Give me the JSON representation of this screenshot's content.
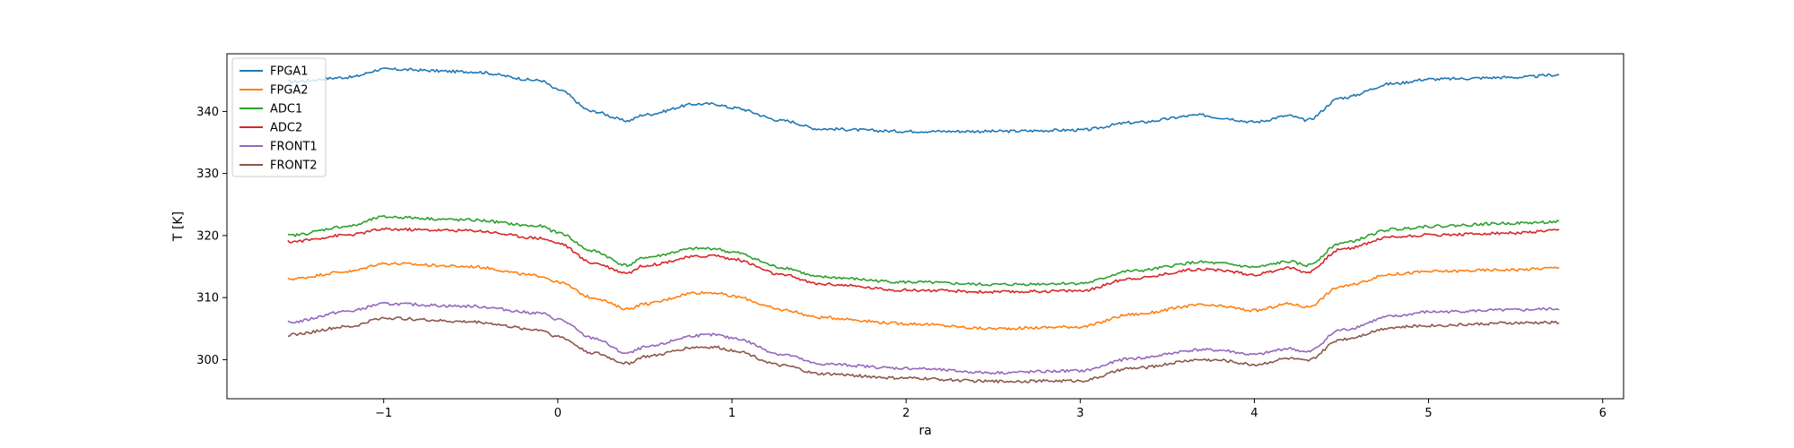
{
  "chart_data": {
    "type": "line",
    "title": "",
    "xlabel": "ra",
    "ylabel": "T [K]",
    "xlim": [
      -1.9,
      6.12
    ],
    "ylim": [
      293.7,
      349.3
    ],
    "xticks": [
      -1,
      0,
      1,
      2,
      3,
      4,
      5,
      6
    ],
    "yticks": [
      300,
      310,
      320,
      330,
      340
    ],
    "legend_position": "top-left",
    "grid": false,
    "series": [
      {
        "name": "FPGA1",
        "color": "#1f77b4",
        "x": [
          -1.55,
          -1.2,
          -1.0,
          -0.5,
          -0.1,
          0.0,
          0.2,
          0.4,
          0.5,
          0.8,
          0.9,
          1.0,
          1.3,
          1.5,
          2.0,
          2.5,
          3.0,
          3.3,
          3.7,
          3.8,
          4.0,
          4.2,
          4.3,
          4.5,
          4.8,
          5.0,
          5.5,
          5.75
        ],
        "y": [
          344.8,
          345.5,
          346.8,
          346.4,
          345.0,
          343.5,
          340.0,
          338.5,
          339.5,
          341.2,
          341.2,
          340.6,
          338.5,
          337.2,
          336.8,
          336.8,
          337.0,
          338.2,
          339.4,
          339.0,
          338.3,
          339.3,
          338.6,
          342.2,
          344.5,
          345.2,
          345.5,
          345.9
        ]
      },
      {
        "name": "FPGA2",
        "color": "#ff7f0e",
        "x": [
          -1.55,
          -1.2,
          -1.0,
          -0.5,
          -0.1,
          0.0,
          0.2,
          0.4,
          0.5,
          0.8,
          0.9,
          1.0,
          1.3,
          1.5,
          2.0,
          2.5,
          3.0,
          3.3,
          3.7,
          3.8,
          4.0,
          4.2,
          4.3,
          4.5,
          4.8,
          5.0,
          5.5,
          5.75
        ],
        "y": [
          313.0,
          314.2,
          315.5,
          315.0,
          313.5,
          312.5,
          310.0,
          308.2,
          309.0,
          310.8,
          310.8,
          310.2,
          308.0,
          306.8,
          305.8,
          305.0,
          305.3,
          307.3,
          308.8,
          308.6,
          307.9,
          309.0,
          308.5,
          311.8,
          313.8,
          314.2,
          314.5,
          314.8
        ]
      },
      {
        "name": "ADC1",
        "color": "#2ca02c",
        "x": [
          -1.55,
          -1.2,
          -1.0,
          -0.5,
          -0.1,
          0.0,
          0.2,
          0.4,
          0.5,
          0.8,
          0.9,
          1.0,
          1.3,
          1.5,
          2.0,
          2.5,
          3.0,
          3.3,
          3.7,
          3.8,
          4.0,
          4.2,
          4.3,
          4.5,
          4.8,
          5.0,
          5.5,
          5.75
        ],
        "y": [
          320.0,
          321.5,
          323.0,
          322.5,
          321.5,
          320.5,
          317.5,
          315.2,
          316.5,
          317.9,
          317.9,
          317.3,
          314.8,
          313.3,
          312.5,
          312.1,
          312.3,
          314.3,
          315.7,
          315.5,
          314.9,
          315.8,
          315.2,
          318.8,
          321.0,
          321.5,
          322.0,
          322.2
        ]
      },
      {
        "name": "ADC2",
        "color": "#d62728",
        "x": [
          -1.55,
          -1.2,
          -1.0,
          -0.5,
          -0.1,
          0.0,
          0.2,
          0.4,
          0.5,
          0.8,
          0.9,
          1.0,
          1.3,
          1.5,
          2.0,
          2.5,
          3.0,
          3.3,
          3.7,
          3.8,
          4.0,
          4.2,
          4.3,
          4.5,
          4.8,
          5.0,
          5.5,
          5.75
        ],
        "y": [
          319.0,
          320.1,
          321.0,
          320.8,
          319.6,
          318.8,
          315.6,
          314.0,
          315.2,
          316.6,
          316.8,
          316.2,
          313.6,
          312.2,
          311.2,
          310.9,
          311.1,
          313.1,
          314.6,
          314.4,
          313.7,
          314.8,
          314.1,
          317.8,
          319.8,
          320.1,
          320.4,
          320.8
        ]
      },
      {
        "name": "FRONT1",
        "color": "#9467bd",
        "x": [
          -1.55,
          -1.2,
          -1.0,
          -0.5,
          -0.1,
          0.0,
          0.2,
          0.4,
          0.5,
          0.8,
          0.9,
          1.0,
          1.3,
          1.5,
          2.0,
          2.5,
          3.0,
          3.3,
          3.7,
          3.8,
          4.0,
          4.2,
          4.3,
          4.5,
          4.8,
          5.0,
          5.5,
          5.75
        ],
        "y": [
          306.0,
          307.8,
          309.0,
          308.6,
          307.5,
          306.5,
          303.5,
          301.0,
          302.0,
          303.9,
          304.0,
          303.5,
          300.8,
          299.3,
          298.6,
          297.9,
          298.2,
          300.2,
          301.6,
          301.5,
          300.8,
          301.8,
          301.2,
          304.8,
          307.0,
          307.7,
          308.0,
          308.2
        ]
      },
      {
        "name": "FRONT2",
        "color": "#8c564b",
        "x": [
          -1.55,
          -1.2,
          -1.0,
          -0.5,
          -0.1,
          0.0,
          0.2,
          0.4,
          0.5,
          0.8,
          0.9,
          1.0,
          1.3,
          1.5,
          2.0,
          2.5,
          3.0,
          3.3,
          3.7,
          3.8,
          4.0,
          4.2,
          4.3,
          4.5,
          4.8,
          5.0,
          5.5,
          5.75
        ],
        "y": [
          304.0,
          305.3,
          306.7,
          306.1,
          304.8,
          303.7,
          301.1,
          299.4,
          300.5,
          302.0,
          302.0,
          301.5,
          299.0,
          297.7,
          297.0,
          296.5,
          296.6,
          298.6,
          300.0,
          299.9,
          299.2,
          300.2,
          299.8,
          303.3,
          305.2,
          305.5,
          305.9,
          306.0
        ]
      }
    ]
  }
}
